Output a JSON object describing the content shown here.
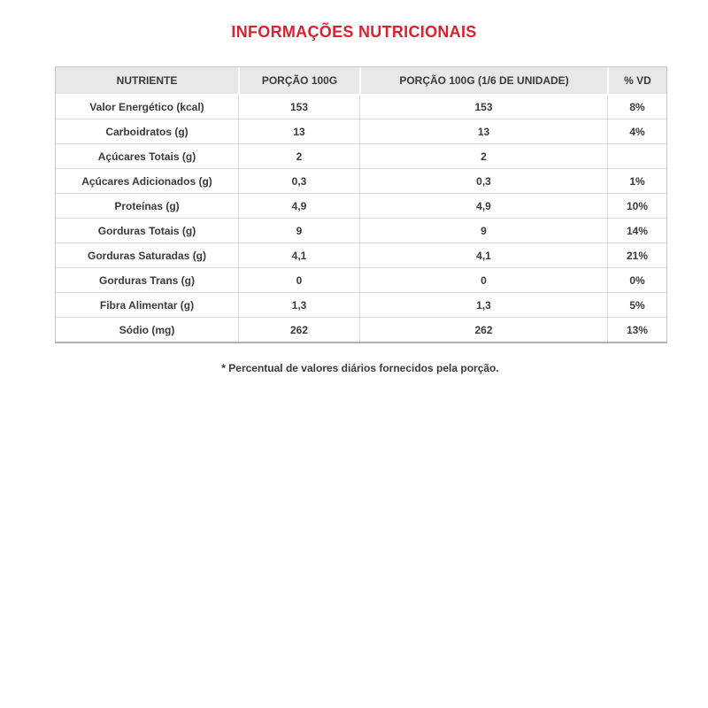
{
  "page": {
    "title": "INFORMAÇÕES NUTRICIONAIS",
    "footnote": "* Percentual de valores diários fornecidos pela porção."
  },
  "colors": {
    "title_red": "#d6232f",
    "header_bg": "#e8e8e8",
    "body_text": "#3a3a3a",
    "grid_line": "#d9d9d9",
    "outer_border": "#c6c6c6"
  },
  "chart_data": {
    "type": "table",
    "title": "INFORMAÇÕES NUTRICIONAIS",
    "columns": [
      "NUTRIENTE",
      "PORÇÃO 100G",
      "PORÇÃO 100G (1/6 DE UNIDADE)",
      "% VD"
    ],
    "rows": [
      [
        "Valor Energético (kcal)",
        "153",
        "153",
        "8%"
      ],
      [
        "Carboidratos (g)",
        "13",
        "13",
        "4%"
      ],
      [
        "Açúcares Totais (g)",
        "2",
        "2",
        ""
      ],
      [
        "Açúcares Adicionados (g)",
        "0,3",
        "0,3",
        "1%"
      ],
      [
        "Proteínas (g)",
        "4,9",
        "4,9",
        "10%"
      ],
      [
        "Gorduras Totais (g)",
        "9",
        "9",
        "14%"
      ],
      [
        "Gorduras Saturadas (g)",
        "4,1",
        "4,1",
        "21%"
      ],
      [
        "Gorduras Trans (g)",
        "0",
        "0",
        "0%"
      ],
      [
        "Fibra Alimentar (g)",
        "1,3",
        "1,3",
        "5%"
      ],
      [
        "Sódio (mg)",
        "262",
        "262",
        "13%"
      ]
    ],
    "footnote": "* Percentual de valores diários fornecidos pela porção.",
    "layout": {
      "grid": true,
      "header_background": true,
      "legend": "none"
    }
  }
}
